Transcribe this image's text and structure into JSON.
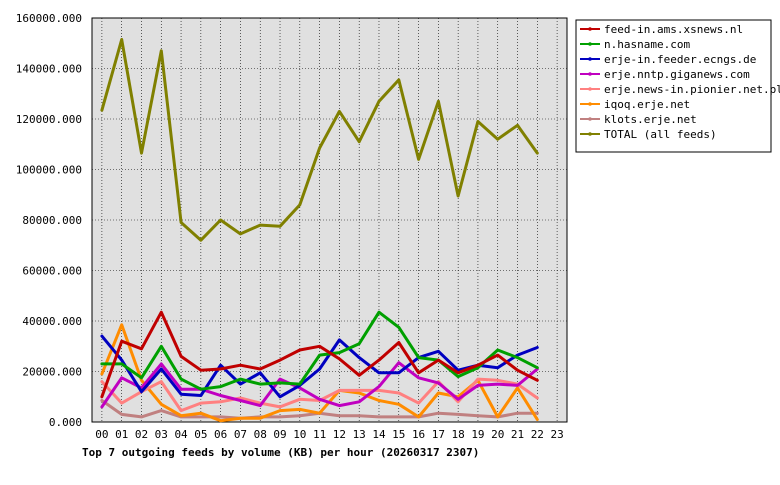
{
  "chart_data": {
    "type": "line",
    "title": "Top 7 outgoing feeds by volume (KB) per hour (20260317 2307)",
    "xlabel": "",
    "ylabel": "",
    "x": [
      "00",
      "01",
      "02",
      "03",
      "04",
      "05",
      "06",
      "07",
      "08",
      "09",
      "10",
      "11",
      "12",
      "13",
      "14",
      "15",
      "16",
      "17",
      "18",
      "19",
      "20",
      "21",
      "22",
      "23"
    ],
    "ylim": [
      0,
      160000
    ],
    "yticks": [
      "0.000",
      "20000.000",
      "40000.000",
      "60000.000",
      "80000.000",
      "100000.000",
      "120000.000",
      "140000.000",
      "160000.000"
    ],
    "grid": true,
    "legend_position": "top-right",
    "series": [
      {
        "name": "feed-in.ams.xsnews.nl",
        "color": "#c00000",
        "values": [
          10000,
          32000,
          29000,
          43500,
          26000,
          20500,
          21000,
          22500,
          21000,
          24500,
          28500,
          30000,
          25000,
          18500,
          24500,
          31500,
          19500,
          24500,
          19500,
          22500,
          26500,
          20500,
          16500,
          null
        ]
      },
      {
        "name": "n.hasname.com",
        "color": "#00a000",
        "values": [
          23000,
          23000,
          17500,
          30000,
          17000,
          13000,
          14000,
          17000,
          15000,
          15500,
          15000,
          26500,
          27500,
          31000,
          43500,
          37500,
          25500,
          24500,
          18000,
          21500,
          28500,
          25500,
          21500,
          null
        ]
      },
      {
        "name": "erje-in.feeder.ecngs.de",
        "color": "#0000c0",
        "values": [
          34000,
          24500,
          12000,
          21000,
          11000,
          10500,
          22500,
          15000,
          19500,
          10000,
          14500,
          21000,
          32500,
          25500,
          19500,
          19500,
          25500,
          28000,
          20500,
          22500,
          21500,
          26500,
          29500,
          null
        ]
      },
      {
        "name": "erje.nntp.giganews.com",
        "color": "#c000c0",
        "values": [
          6000,
          17500,
          13500,
          23000,
          13000,
          13000,
          10500,
          8500,
          6500,
          17000,
          13500,
          9000,
          6500,
          8000,
          14000,
          23500,
          17500,
          15500,
          9000,
          14500,
          15000,
          14500,
          21000,
          null
        ]
      },
      {
        "name": "erje.news-in.pionier.net.pl",
        "color": "#ff8080",
        "values": [
          16000,
          7500,
          12000,
          16000,
          4500,
          7500,
          8000,
          9500,
          7500,
          6000,
          9000,
          8500,
          12500,
          12500,
          12500,
          11500,
          7500,
          16000,
          8000,
          17000,
          16500,
          15000,
          9500,
          null
        ]
      },
      {
        "name": "iqoq.erje.net",
        "color": "#ff8c00",
        "values": [
          19000,
          38500,
          16500,
          7000,
          2500,
          3500,
          500,
          1500,
          1500,
          4500,
          5000,
          3500,
          12500,
          11500,
          8500,
          7000,
          2000,
          11500,
          10000,
          16500,
          2000,
          13500,
          1000,
          null
        ]
      },
      {
        "name": "klots.erje.net",
        "color": "#c08080",
        "values": [
          8500,
          3000,
          2000,
          4500,
          2000,
          2000,
          2000,
          1500,
          2000,
          2000,
          2500,
          3500,
          2500,
          2500,
          2000,
          2000,
          2000,
          3500,
          3000,
          2500,
          2000,
          3500,
          3500,
          null
        ]
      },
      {
        "name": "TOTAL (all feeds)",
        "color": "#808000",
        "values": [
          123500,
          151500,
          106500,
          147000,
          79000,
          72000,
          80000,
          74500,
          78000,
          77500,
          86000,
          108500,
          123000,
          111000,
          127000,
          135500,
          104000,
          127000,
          89500,
          119000,
          112000,
          117500,
          106500,
          null
        ]
      }
    ]
  }
}
